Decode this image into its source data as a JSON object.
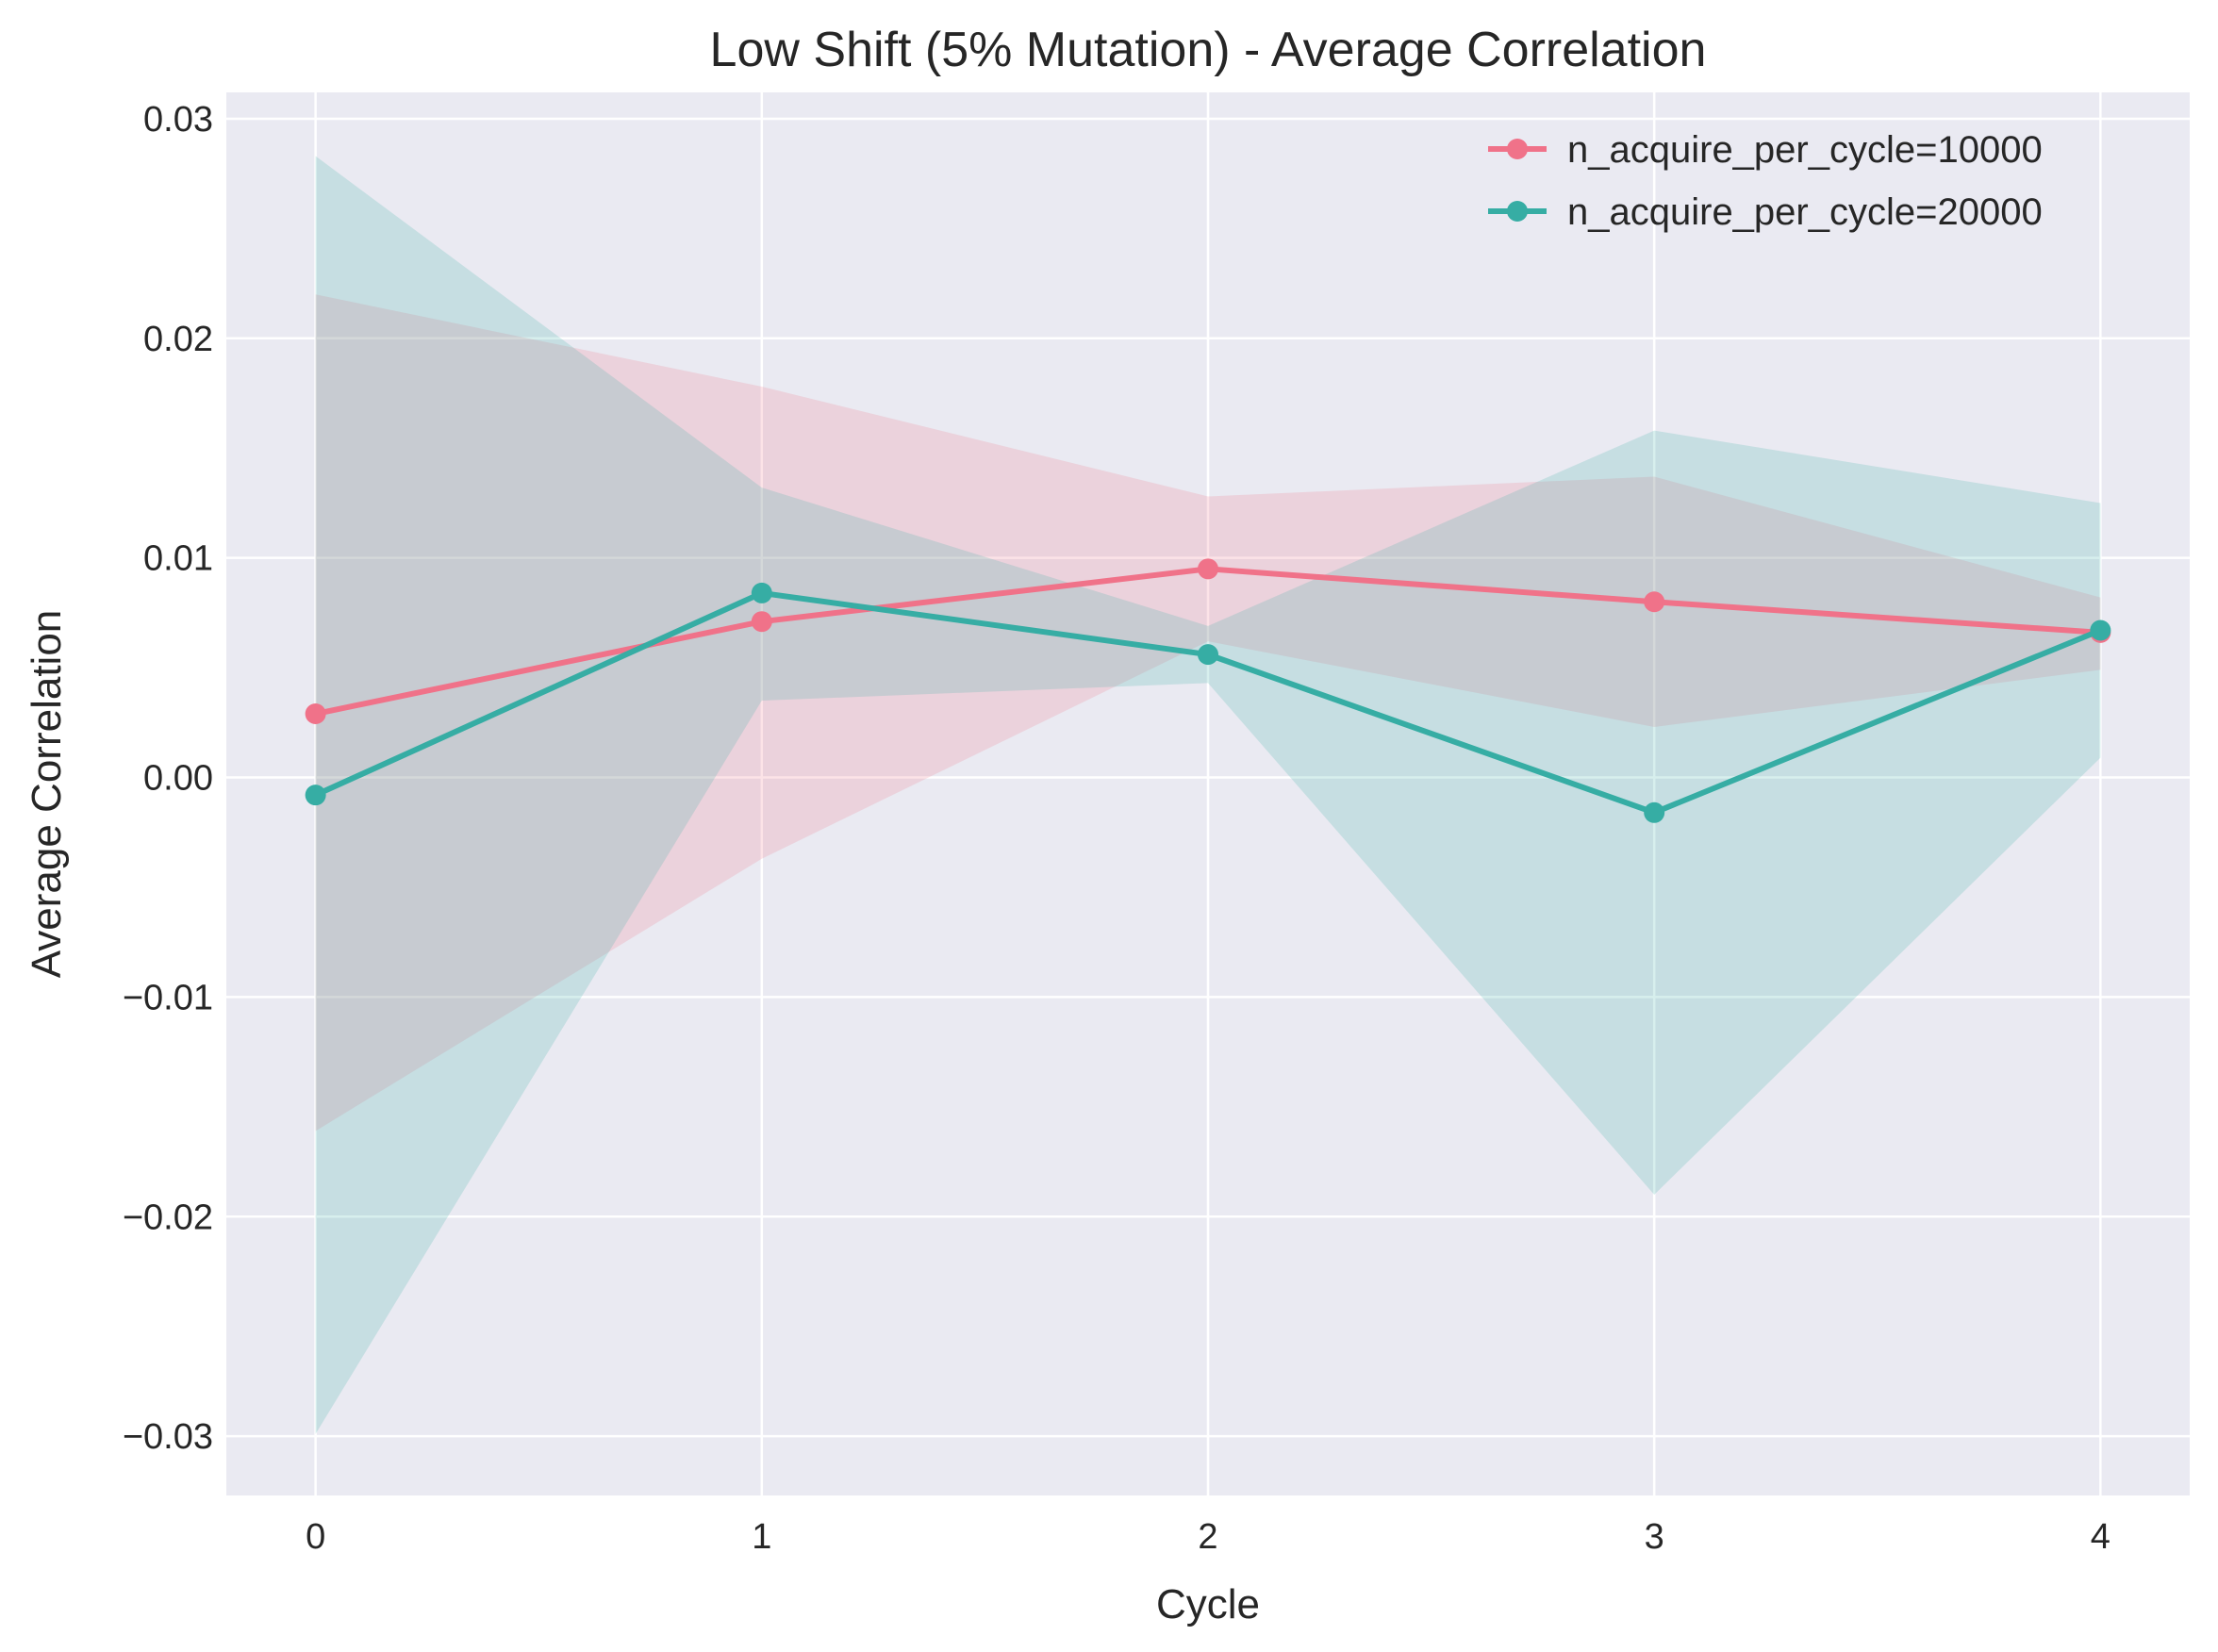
{
  "chart_data": {
    "type": "line",
    "title": "Low Shift (5% Mutation) - Average Correlation",
    "xlabel": "Cycle",
    "ylabel": "Average Correlation",
    "x": [
      0,
      1,
      2,
      3,
      4
    ],
    "xticks": [
      "0",
      "1",
      "2",
      "3",
      "4"
    ],
    "xlim": [
      -0.2,
      4.2
    ],
    "yticks": [
      -0.03,
      -0.02,
      -0.01,
      0.0,
      0.01,
      0.02,
      0.03
    ],
    "ytick_labels": [
      "−0.03",
      "−0.02",
      "−0.01",
      "0.00",
      "0.01",
      "0.02",
      "0.03"
    ],
    "ylim": [
      -0.0327,
      0.0312
    ],
    "grid": true,
    "legend_position": "top-right",
    "series": [
      {
        "name": "n_acquire_per_cycle=10000",
        "color": "#f07289",
        "values": [
          0.0029,
          0.0071,
          0.0095,
          0.008,
          0.0066
        ],
        "lower": [
          -0.0161,
          -0.0037,
          0.0062,
          0.0023,
          0.0049
        ],
        "upper": [
          0.022,
          0.0178,
          0.0128,
          0.0137,
          0.0082
        ]
      },
      {
        "name": "n_acquire_per_cycle=20000",
        "color": "#36ada4",
        "values": [
          -0.0008,
          0.0084,
          0.0056,
          -0.0016,
          0.0067
        ],
        "lower": [
          -0.0299,
          0.0035,
          0.0043,
          -0.019,
          0.0009
        ],
        "upper": [
          0.0283,
          0.0132,
          0.0069,
          0.0158,
          0.0125
        ]
      }
    ]
  }
}
